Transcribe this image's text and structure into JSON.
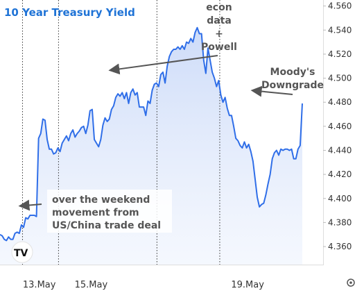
{
  "chart_data": {
    "type": "area",
    "title": "10 Year Treasury Yield",
    "xlabel": "",
    "ylabel": "",
    "ylim": [
      4.345,
      4.565
    ],
    "x_ticks": [
      "13.May",
      "15.May",
      "19.May"
    ],
    "y_ticks": [
      "4.560",
      "4.540",
      "4.520",
      "4.500",
      "4.480",
      "4.460",
      "4.440",
      "4.420",
      "4.400",
      "4.380",
      "4.360"
    ],
    "y_tick_values": [
      4.56,
      4.54,
      4.52,
      4.5,
      4.48,
      4.46,
      4.44,
      4.42,
      4.4,
      4.38,
      4.36
    ],
    "series": [
      {
        "name": "",
        "color": "#2f6ee8",
        "fill_color": "#dbe6fb",
        "values": [
          4.37,
          4.369,
          4.366,
          4.365,
          4.368,
          4.366,
          4.366,
          4.371,
          4.372,
          4.371,
          4.378,
          4.376,
          4.384,
          4.383,
          4.386,
          4.386,
          4.386,
          4.385,
          4.45,
          4.454,
          4.466,
          4.465,
          4.449,
          4.441,
          4.441,
          4.437,
          4.438,
          4.442,
          4.439,
          4.446,
          4.449,
          4.452,
          4.448,
          4.454,
          4.457,
          4.451,
          4.454,
          4.456,
          4.459,
          4.46,
          4.454,
          4.461,
          4.473,
          4.474,
          4.449,
          4.446,
          4.443,
          4.449,
          4.461,
          4.467,
          4.464,
          4.466,
          4.474,
          4.477,
          4.484,
          4.487,
          4.485,
          4.488,
          4.483,
          4.488,
          4.479,
          4.488,
          4.491,
          4.486,
          4.488,
          4.476,
          4.476,
          4.476,
          4.469,
          4.481,
          4.479,
          4.49,
          4.495,
          4.496,
          4.493,
          4.503,
          4.505,
          4.496,
          4.51,
          4.518,
          4.522,
          4.524,
          4.524,
          4.526,
          4.524,
          4.527,
          4.524,
          4.53,
          4.529,
          4.533,
          4.53,
          4.538,
          4.542,
          4.537,
          4.537,
          4.515,
          4.504,
          4.525,
          4.515,
          4.505,
          4.5,
          4.493,
          4.498,
          4.486,
          4.48,
          4.484,
          4.475,
          4.469,
          4.469,
          4.46,
          4.45,
          4.448,
          4.444,
          4.442,
          4.447,
          4.442,
          4.445,
          4.439,
          4.431,
          4.416,
          4.401,
          4.393,
          4.395,
          4.396,
          4.403,
          4.412,
          4.42,
          4.433,
          4.438,
          4.44,
          4.436,
          4.441,
          4.44,
          4.441,
          4.441,
          4.44,
          4.441,
          4.433,
          4.433,
          4.441,
          4.444,
          4.479
        ]
      }
    ],
    "x_tick_positions": [
      18.33,
      42.5,
      115.5
    ],
    "session_breaks": [
      10.5,
      27.3,
      73.2,
      102.5
    ],
    "annotations": [
      {
        "lines": [
          "over the weekend",
          "movement from",
          "US/China trade deal"
        ],
        "x": 10.5,
        "y": 4.394
      },
      {
        "lines": [
          "econ",
          "data",
          "+",
          "Powell"
        ],
        "x": 51.2,
        "y": 4.507
      },
      {
        "lines": [
          "Moody's",
          "Downgrade"
        ],
        "x": 119.5,
        "y": 4.486
      }
    ],
    "grid": false,
    "legend": "none"
  },
  "branding": {
    "logo": "TV"
  }
}
